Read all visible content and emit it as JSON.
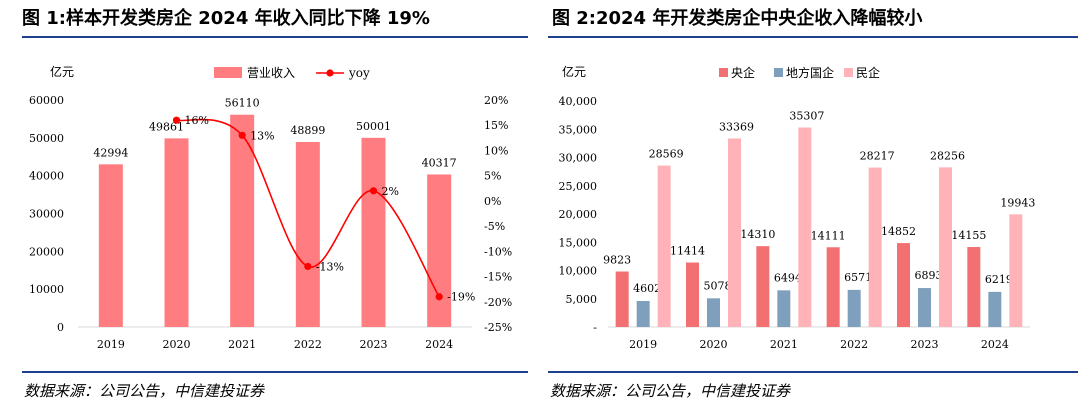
{
  "left": {
    "title": "图 1:样本开发类房企 2024 年收入同比下降 19%",
    "source": "数据来源：公司公告，中信建投证券",
    "unit": "亿元",
    "chart_data": {
      "type": "bar+line",
      "categories": [
        "2019",
        "2020",
        "2021",
        "2022",
        "2023",
        "2024"
      ],
      "series": [
        {
          "name": "营业收入",
          "kind": "bar",
          "axis": "left",
          "color": "#ff7c80",
          "values": [
            42994,
            49861,
            56110,
            48899,
            50001,
            40317
          ],
          "labels": [
            "42994",
            "49861",
            "56110",
            "48899",
            "50001",
            "40317"
          ]
        },
        {
          "name": "yoy",
          "kind": "line",
          "axis": "right",
          "color": "#ff0000",
          "values": [
            null,
            16,
            13,
            -13,
            2,
            -19
          ],
          "labels": [
            "",
            "16%",
            "13%",
            "-13%",
            "2%",
            "-19%"
          ]
        }
      ],
      "ylim_left": [
        0,
        60000
      ],
      "yticks_left": [
        "0",
        "10000",
        "20000",
        "30000",
        "40000",
        "50000",
        "60000"
      ],
      "ylim_right": [
        -25,
        20
      ],
      "yticks_right": [
        "-25%",
        "-20%",
        "-15%",
        "-10%",
        "-5%",
        "0%",
        "5%",
        "10%",
        "15%",
        "20%"
      ],
      "legend": "top-center"
    }
  },
  "right": {
    "title": "图 2:2024 年开发类房企中央企收入降幅较小",
    "source": "数据来源：公司公告，中信建投证券",
    "unit": "亿元",
    "chart_data": {
      "type": "bar",
      "categories": [
        "2019",
        "2020",
        "2021",
        "2022",
        "2023",
        "2024"
      ],
      "series": [
        {
          "name": "央企",
          "color": "#f26f72",
          "values": [
            9823,
            11414,
            14310,
            14111,
            14852,
            14155
          ]
        },
        {
          "name": "地方国企",
          "color": "#7fa0bd",
          "values": [
            4602,
            5078,
            6494,
            6571,
            6893,
            6219
          ]
        },
        {
          "name": "民企",
          "color": "#ffb3b8",
          "values": [
            28569,
            33369,
            35307,
            28217,
            28256,
            19943
          ]
        }
      ],
      "ylim": [
        0,
        40000
      ],
      "yticks": [
        "-",
        "5,000",
        "10,000",
        "15,000",
        "20,000",
        "25,000",
        "30,000",
        "35,000",
        "40,000"
      ],
      "legend": "top-center"
    }
  }
}
